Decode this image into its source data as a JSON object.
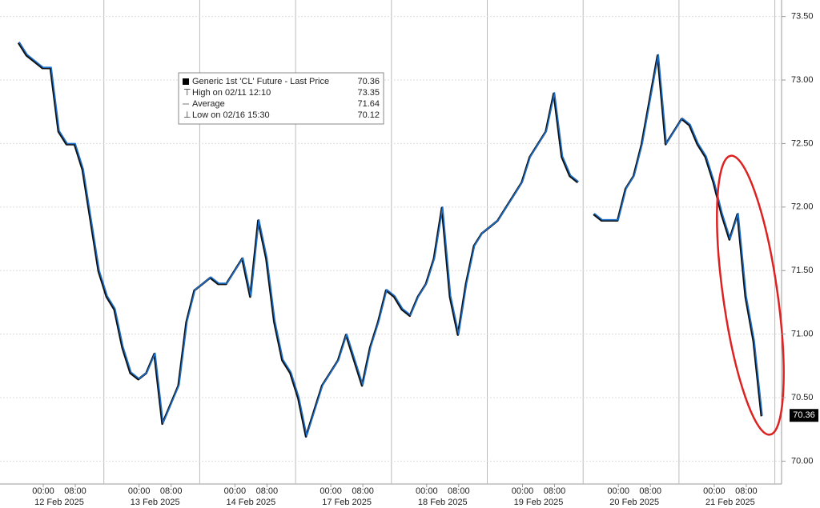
{
  "chart_data": {
    "type": "line",
    "x": [
      null,
      null,
      null,
      "00:00",
      null,
      null,
      null,
      "08:00",
      null,
      null,
      null,
      null,
      null,
      null,
      null,
      "00:00",
      null,
      null,
      null,
      "08:00",
      null,
      null,
      null,
      null,
      null,
      null,
      null,
      "00:00",
      null,
      null,
      null,
      "08:00",
      null,
      null,
      null,
      null,
      null,
      null,
      null,
      "00:00",
      null,
      null,
      null,
      "08:00",
      null,
      null,
      null,
      null,
      null,
      null,
      null,
      "00:00",
      null,
      null,
      null,
      "08:00",
      null,
      null,
      null,
      null,
      null,
      null,
      null,
      "00:00",
      null,
      null,
      null,
      "08:00",
      null,
      null,
      null,
      null,
      null,
      null,
      null,
      "00:00",
      null,
      null,
      null,
      "08:00",
      null,
      null,
      null,
      null,
      null,
      null,
      null,
      "00:00",
      null,
      null,
      null,
      "08:00",
      null,
      null
    ],
    "dates": [
      "12 Feb 2025",
      "13 Feb 2025",
      "14 Feb 2025",
      "17 Feb 2025",
      "18 Feb 2025",
      "19 Feb 2025",
      "20 Feb 2025",
      "21 Feb 2025"
    ],
    "series": [
      {
        "name": "Generic 1st 'CL' Future - Last Price",
        "color": "#1d6fcc",
        "values": [
          73.3,
          73.2,
          73.15,
          73.1,
          73.1,
          72.6,
          72.5,
          72.5,
          72.3,
          71.9,
          71.5,
          71.3,
          71.2,
          70.9,
          70.7,
          70.65,
          70.7,
          70.85,
          70.3,
          70.45,
          70.6,
          71.1,
          71.35,
          71.4,
          71.45,
          71.4,
          71.4,
          71.5,
          71.6,
          71.3,
          71.9,
          71.6,
          71.1,
          70.8,
          70.7,
          70.5,
          70.2,
          70.4,
          70.6,
          70.7,
          70.8,
          71.0,
          70.8,
          70.6,
          70.9,
          71.1,
          71.35,
          71.3,
          71.2,
          71.15,
          71.3,
          71.4,
          71.6,
          72.0,
          71.3,
          71.0,
          71.4,
          71.7,
          71.8,
          71.85,
          71.9,
          72.0,
          72.1,
          72.2,
          72.4,
          72.5,
          72.6,
          72.9,
          72.4,
          72.25,
          72.2,
          null,
          71.95,
          71.9,
          71.9,
          71.9,
          72.15,
          72.25,
          72.5,
          72.85,
          73.2,
          72.5,
          72.6,
          72.7,
          72.65,
          72.5,
          72.4,
          72.2,
          71.95,
          71.75,
          71.95,
          71.3,
          70.95,
          70.36
        ]
      }
    ],
    "stats": [
      {
        "label": "High on 02/11 12:10",
        "value": 73.35
      },
      {
        "label": "Average",
        "value": 71.64
      },
      {
        "label": "Low on 02/16 15:30",
        "value": 70.12
      }
    ],
    "ylim": [
      69.82,
      73.63
    ],
    "yticks": [
      {
        "value": 70,
        "label": "70.00"
      },
      {
        "value": 70.5,
        "label": "70.50"
      },
      {
        "value": 71,
        "label": "71.00"
      },
      {
        "value": 71.5,
        "label": "71.50"
      },
      {
        "value": 72,
        "label": "72.00"
      },
      {
        "value": 72.5,
        "label": "72.50"
      },
      {
        "value": 73,
        "label": "73.00"
      },
      {
        "value": 73.5,
        "label": "73.50"
      }
    ],
    "grid": true
  }
}
